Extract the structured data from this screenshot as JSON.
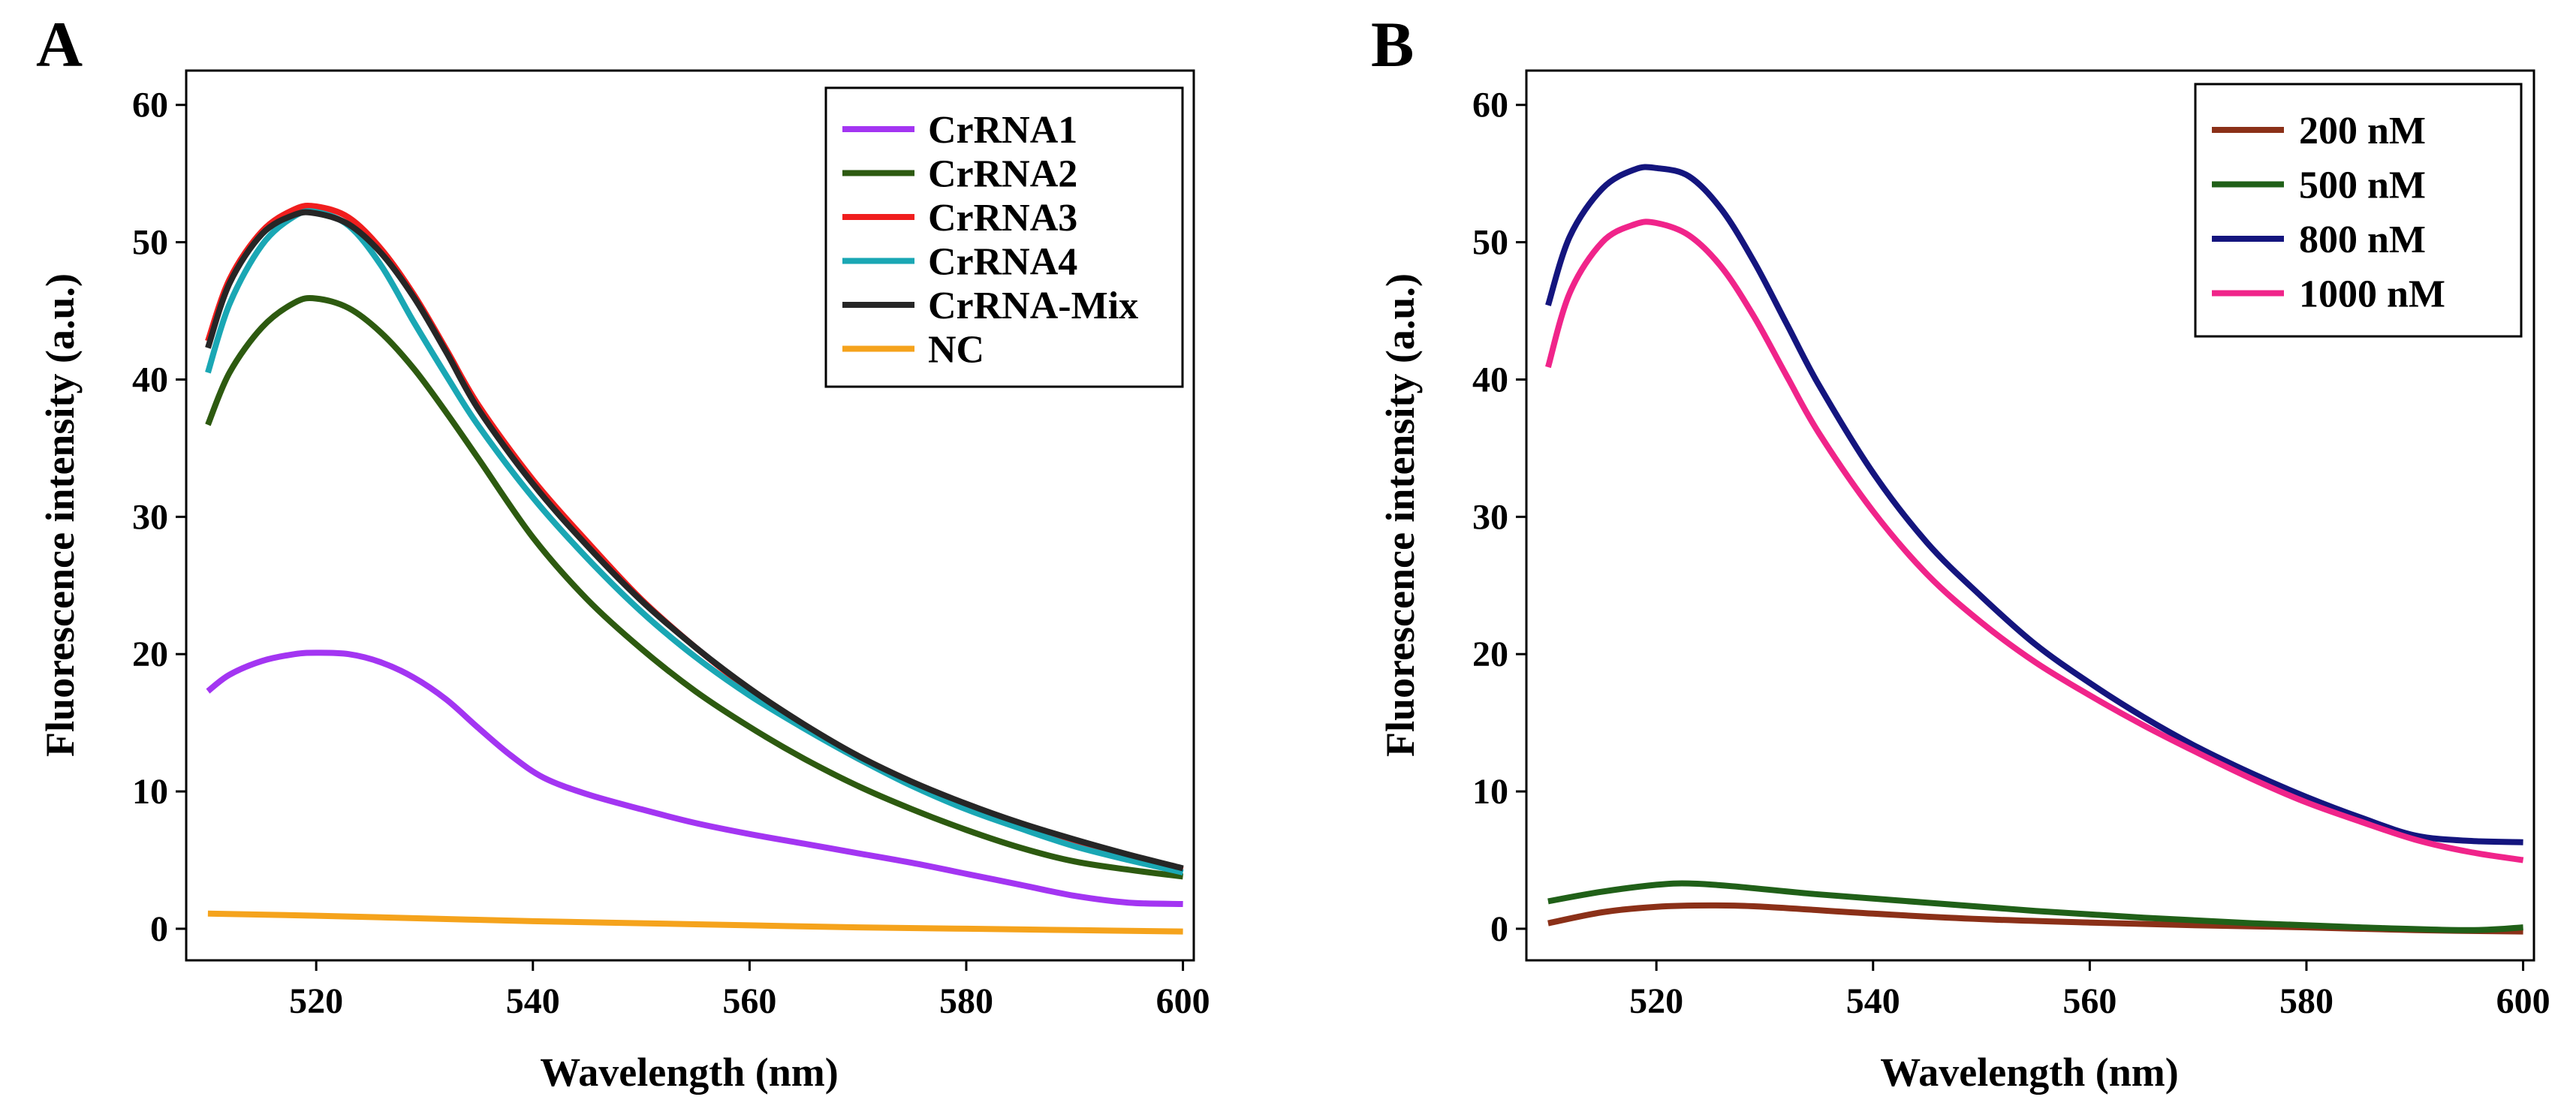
{
  "chart_data": [
    {
      "type": "line",
      "panel_label": "A",
      "xlabel": "Wavelength (nm)",
      "ylabel": "Fluorescence intensity (a.u.)",
      "xlim": [
        508,
        601
      ],
      "ylim": [
        -2.3,
        62.5
      ],
      "xticks": [
        520,
        540,
        560,
        580,
        600
      ],
      "yticks": [
        0,
        10,
        20,
        30,
        40,
        50,
        60
      ],
      "legend_position": "top-right",
      "series": [
        {
          "name": "CrRNA1",
          "color": "#a335f2",
          "x": [
            510,
            512,
            515,
            518,
            520,
            523,
            526,
            529,
            532,
            535,
            538,
            541,
            545,
            550,
            555,
            560,
            565,
            570,
            575,
            580,
            585,
            590,
            595,
            600
          ],
          "y": [
            17.3,
            18.5,
            19.5,
            20.0,
            20.1,
            20.0,
            19.4,
            18.3,
            16.7,
            14.6,
            12.6,
            11.0,
            9.8,
            8.7,
            7.7,
            6.9,
            6.2,
            5.5,
            4.8,
            4.0,
            3.2,
            2.4,
            1.9,
            1.8
          ]
        },
        {
          "name": "CrRNA2",
          "color": "#2d5a10",
          "x": [
            510,
            512,
            515,
            518,
            520,
            523,
            526,
            529,
            532,
            535,
            540,
            545,
            550,
            555,
            560,
            565,
            570,
            575,
            580,
            585,
            590,
            595,
            600
          ],
          "y": [
            36.7,
            40.5,
            43.8,
            45.6,
            45.9,
            45.2,
            43.4,
            40.8,
            37.6,
            34.2,
            28.5,
            24.0,
            20.4,
            17.3,
            14.7,
            12.4,
            10.4,
            8.7,
            7.2,
            5.9,
            4.9,
            4.3,
            3.8
          ]
        },
        {
          "name": "CrRNA3",
          "color": "#f01e1e",
          "x": [
            510,
            512,
            515,
            518,
            520,
            523,
            526,
            529,
            532,
            535,
            540,
            545,
            550,
            555,
            560,
            565,
            570,
            575,
            580,
            585,
            590,
            595,
            600
          ],
          "y": [
            42.8,
            47.3,
            50.8,
            52.4,
            52.6,
            51.8,
            49.5,
            46.2,
            42.2,
            38.1,
            32.7,
            28.2,
            24.0,
            20.5,
            17.4,
            14.7,
            12.4,
            10.5,
            8.9,
            7.5,
            6.3,
            5.2,
            4.3
          ]
        },
        {
          "name": "CrRNA4",
          "color": "#1aa7b4",
          "x": [
            510,
            512,
            515,
            518,
            520,
            523,
            526,
            529,
            532,
            535,
            540,
            545,
            550,
            555,
            560,
            565,
            570,
            575,
            580,
            585,
            590,
            595,
            600
          ],
          "y": [
            40.5,
            45.5,
            49.8,
            51.9,
            52.2,
            51.2,
            48.3,
            44.2,
            40.3,
            36.6,
            31.4,
            27.0,
            23.1,
            19.8,
            17.0,
            14.6,
            12.4,
            10.4,
            8.7,
            7.3,
            6.0,
            5.0,
            4.1
          ]
        },
        {
          "name": "CrRNA-Mix",
          "color": "#262626",
          "x": [
            510,
            512,
            515,
            518,
            520,
            523,
            526,
            529,
            532,
            535,
            540,
            545,
            550,
            555,
            560,
            565,
            570,
            575,
            580,
            585,
            590,
            595,
            600
          ],
          "y": [
            42.3,
            47.0,
            50.6,
            52.0,
            52.1,
            51.3,
            49.2,
            46.0,
            42.0,
            37.8,
            32.4,
            27.9,
            23.9,
            20.5,
            17.5,
            14.9,
            12.6,
            10.7,
            9.1,
            7.7,
            6.5,
            5.4,
            4.4
          ]
        },
        {
          "name": "NC",
          "color": "#f5a31c",
          "x": [
            510,
            520,
            530,
            540,
            550,
            560,
            570,
            580,
            590,
            600
          ],
          "y": [
            1.1,
            0.95,
            0.75,
            0.55,
            0.4,
            0.25,
            0.1,
            0.0,
            -0.1,
            -0.2
          ]
        }
      ]
    },
    {
      "type": "line",
      "panel_label": "B",
      "xlabel": "Wavelength (nm)",
      "ylabel": "Fluorescence intensity (a.u.)",
      "xlim": [
        508,
        601
      ],
      "ylim": [
        -2.3,
        62.5
      ],
      "xticks": [
        520,
        540,
        560,
        580,
        600
      ],
      "yticks": [
        0,
        10,
        20,
        30,
        40,
        50,
        60
      ],
      "legend_position": "top-right",
      "series": [
        {
          "name": "200 nM",
          "color": "#8b3018",
          "x": [
            510,
            515,
            520,
            525,
            530,
            540,
            550,
            560,
            570,
            580,
            590,
            600
          ],
          "y": [
            0.4,
            1.2,
            1.6,
            1.7,
            1.6,
            1.1,
            0.7,
            0.45,
            0.25,
            0.1,
            -0.1,
            -0.2
          ]
        },
        {
          "name": "500 nM",
          "color": "#206018",
          "x": [
            510,
            515,
            520,
            523,
            527,
            535,
            545,
            555,
            565,
            575,
            585,
            595,
            600
          ],
          "y": [
            2.0,
            2.7,
            3.2,
            3.3,
            3.1,
            2.5,
            1.9,
            1.3,
            0.8,
            0.4,
            0.1,
            -0.1,
            0.1
          ]
        },
        {
          "name": "800 nM",
          "color": "#14157e",
          "x": [
            510,
            512,
            515,
            518,
            520,
            523,
            526,
            529,
            532,
            535,
            540,
            545,
            550,
            555,
            560,
            565,
            570,
            575,
            580,
            585,
            590,
            595,
            600
          ],
          "y": [
            45.4,
            50.4,
            53.9,
            55.3,
            55.4,
            54.8,
            52.4,
            48.6,
            44.1,
            39.6,
            33.2,
            28.1,
            24.2,
            20.7,
            17.9,
            15.4,
            13.2,
            11.3,
            9.6,
            8.1,
            6.8,
            6.4,
            6.3
          ]
        },
        {
          "name": "1000 nM",
          "color": "#f0248a",
          "x": [
            510,
            512,
            515,
            518,
            520,
            523,
            526,
            529,
            532,
            535,
            540,
            545,
            550,
            555,
            560,
            565,
            570,
            575,
            580,
            585,
            590,
            595,
            600
          ],
          "y": [
            40.9,
            46.3,
            50.0,
            51.3,
            51.4,
            50.5,
            48.2,
            44.6,
            40.3,
            36.1,
            30.4,
            25.8,
            22.3,
            19.4,
            17.0,
            14.8,
            12.8,
            10.9,
            9.2,
            7.8,
            6.5,
            5.6,
            5.0
          ]
        }
      ]
    }
  ]
}
